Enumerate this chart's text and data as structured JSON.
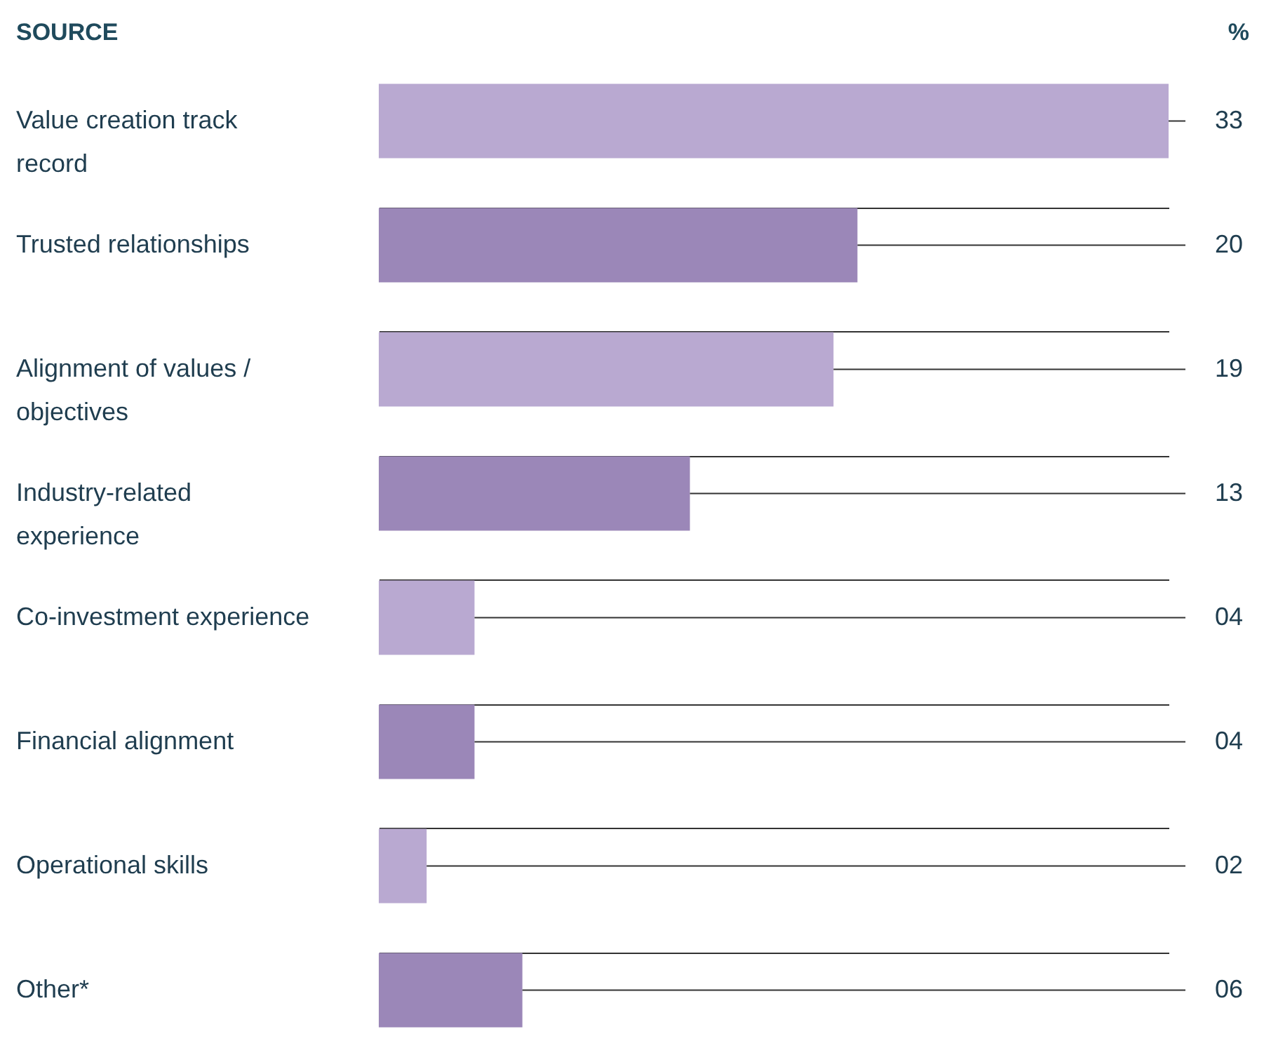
{
  "chart_data": {
    "type": "bar",
    "orientation": "horizontal",
    "xlabel": "%",
    "ylabel": "SOURCE",
    "categories": [
      "Value creation track record",
      "Trusted relationships",
      "Alignment of values / objectives",
      "Industry-related experience",
      "Co-investment experience",
      "Financial alignment",
      "Operational skills",
      "Other*"
    ],
    "values": [
      33,
      20,
      19,
      13,
      4,
      4,
      2,
      6
    ],
    "colors": [
      "#b9a9d1",
      "#9b87b8",
      "#b9a9d1",
      "#9b87b8",
      "#b9a9d1",
      "#9b87b8",
      "#b9a9d1",
      "#9b87b8"
    ],
    "value_labels": [
      "33",
      "20",
      "19",
      "13",
      "04",
      "04",
      "02",
      "06"
    ],
    "grid": "y"
  }
}
